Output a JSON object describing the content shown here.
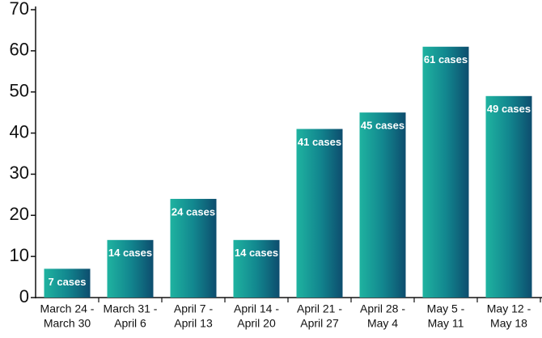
{
  "chart_data": {
    "type": "bar",
    "categories": [
      [
        "March 24 -",
        "March 30"
      ],
      [
        "March 31 -",
        "April 6"
      ],
      [
        "April 7 -",
        "April 13"
      ],
      [
        "April 14 -",
        "April 20"
      ],
      [
        "April 21 -",
        "April 27"
      ],
      [
        "April 28 -",
        "May 4"
      ],
      [
        "May 5 -",
        "May 11"
      ],
      [
        "May 12 -",
        "May 18"
      ]
    ],
    "values": [
      7,
      14,
      24,
      14,
      41,
      45,
      61,
      49
    ],
    "value_labels": [
      "7 cases",
      "14 cases",
      "24 cases",
      "14 cases",
      "41 cases",
      "45 cases",
      "61 cases",
      "49 cases"
    ],
    "ylim": [
      0,
      70
    ],
    "yticks": [
      0,
      10,
      20,
      30,
      40,
      50,
      60,
      70
    ]
  }
}
